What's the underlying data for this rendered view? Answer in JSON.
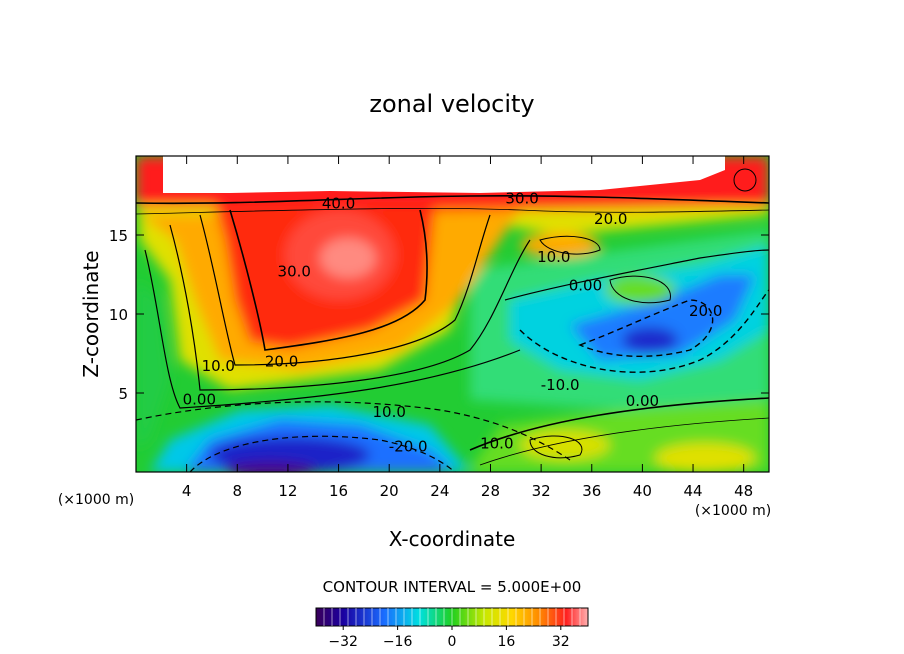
{
  "chart_data": {
    "type": "heatmap",
    "title": "zonal velocity",
    "xlabel": "X-coordinate",
    "ylabel": "Z-coordinate",
    "x_unit_label": "(×1000 m)",
    "xlim": [
      0,
      50
    ],
    "ylim": [
      0,
      20
    ],
    "xticks": [
      4,
      8,
      12,
      16,
      20,
      24,
      28,
      32,
      36,
      40,
      44,
      48
    ],
    "yticks": [
      5,
      10,
      15
    ],
    "contour_interval_text": "CONTOUR INTERVAL = 5.000E+00",
    "colorbar": {
      "range": [
        -40,
        40
      ],
      "ticks": [
        -32,
        -16,
        0,
        16,
        32
      ],
      "tick_labels": [
        "−32",
        "−16",
        "0",
        "16",
        "32"
      ]
    },
    "contour_labels": [
      {
        "text": "40.0",
        "x": 16.0,
        "z": 17.0
      },
      {
        "text": "30.0",
        "x": 30.5,
        "z": 17.3
      },
      {
        "text": "20.0",
        "x": 37.5,
        "z": 16.0
      },
      {
        "text": "30.0",
        "x": 12.5,
        "z": 12.7
      },
      {
        "text": "10.0",
        "x": 33.0,
        "z": 13.6
      },
      {
        "text": "0.00",
        "x": 35.5,
        "z": 11.8
      },
      {
        "text": "20.0",
        "x": 45.0,
        "z": 10.2
      },
      {
        "text": "20.0",
        "x": 11.5,
        "z": 7.0
      },
      {
        "text": "10.0",
        "x": 6.5,
        "z": 6.7
      },
      {
        "text": "0.00",
        "x": 5.0,
        "z": 4.6
      },
      {
        "text": "-10.0",
        "x": 33.5,
        "z": 5.5
      },
      {
        "text": "0.00",
        "x": 40.0,
        "z": 4.5
      },
      {
        "text": "10.0",
        "x": 20.0,
        "z": 3.8
      },
      {
        "text": "-20.0",
        "x": 21.5,
        "z": 1.6
      },
      {
        "text": "10.0",
        "x": 28.5,
        "z": 1.8
      }
    ]
  }
}
